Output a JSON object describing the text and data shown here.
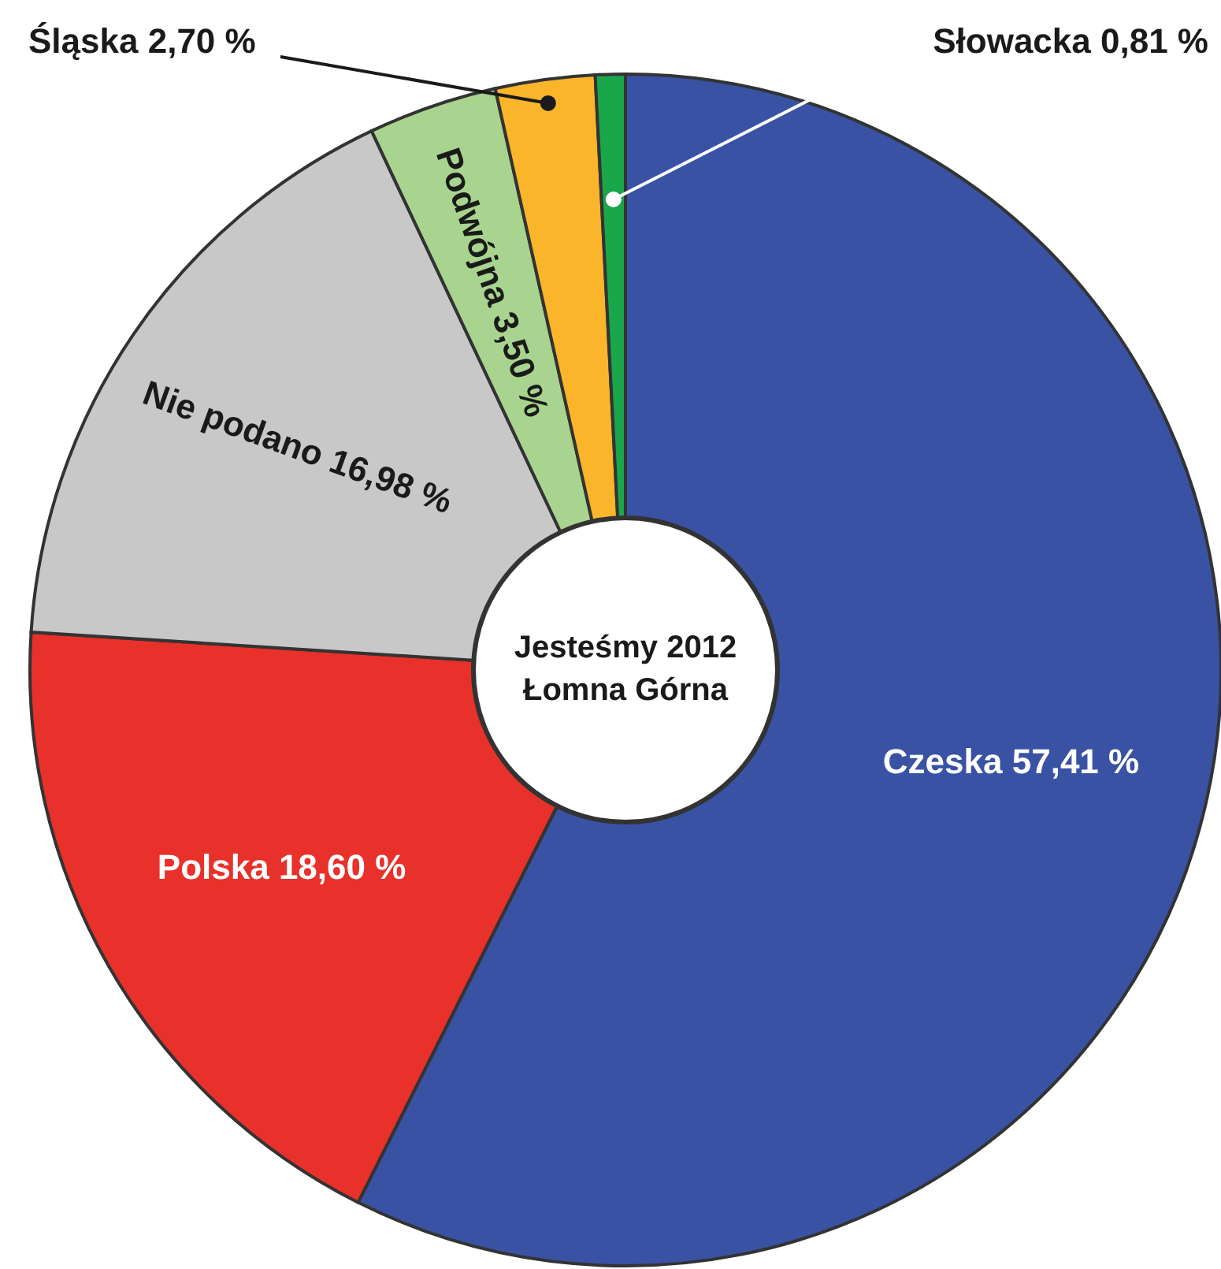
{
  "chart_data": {
    "type": "donut",
    "title": "Jesteśmy 2012\nŁomna Górna",
    "categories": [
      "Czeska",
      "Polska",
      "Nie podano",
      "Podwójna",
      "Śląska",
      "Słowacka"
    ],
    "values": [
      57.41,
      18.6,
      16.98,
      3.5,
      2.7,
      0.81
    ],
    "value_labels": [
      "57,41 %",
      "18,60 %",
      "16,98 %",
      "3,50 %",
      "2,70 %",
      "0,81 %"
    ],
    "colors": [
      "#3a52a3",
      "#e8312a",
      "#c8c8c8",
      "#a8d48f",
      "#fbb52a",
      "#1aa64a"
    ]
  }
}
